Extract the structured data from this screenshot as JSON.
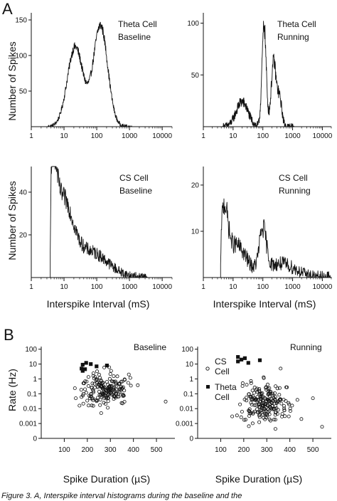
{
  "panel_labels": {
    "A": "A",
    "B": "B"
  },
  "text": {
    "y_title_hist_top": "Number of Spikes",
    "y_title_hist_bottom": "Number of Spikes",
    "x_title_hist_left": "Interspike Interval (mS)",
    "x_title_hist_right": "Interspike Interval (mS)",
    "y_title_scatter": "Rate (Hz)",
    "x_title_scatter_left": "Spike Duration (µS)",
    "x_title_scatter_right": "Spike Duration (µS)",
    "legend_cs_1": "CS",
    "legend_cs_2": "Cell",
    "legend_theta_1": "Theta",
    "legend_theta_2": "Cell",
    "caption_fragment": "Figure 3. A, Interspike interval histograms during the baseline and the"
  },
  "chart_data": [
    {
      "type": "area",
      "id": "theta_baseline",
      "label_lines": [
        "Theta Cell",
        "Baseline"
      ],
      "x_scale": "log",
      "xlim": [
        1,
        20000
      ],
      "ylim": [
        0,
        160
      ],
      "x_ticks": [
        1,
        10,
        100,
        1000,
        10000
      ],
      "x_tick_labels": [
        "1",
        "10",
        "100",
        "1000",
        "10000"
      ],
      "y_ticks": [
        50,
        100,
        150
      ],
      "y_tick_labels": [
        "50",
        "100",
        "150"
      ],
      "peaks": [
        {
          "x": 3.5,
          "y": 0,
          "sd": 0.06
        },
        {
          "x": 22,
          "y": 112,
          "sd": 0.24
        },
        {
          "x": 130,
          "y": 142,
          "sd": 0.22
        }
      ],
      "x_start": 3.2,
      "x_end": 1200,
      "noise": 7
    },
    {
      "type": "area",
      "id": "theta_running",
      "label_lines": [
        "Theta Cell",
        "Running"
      ],
      "x_scale": "log",
      "xlim": [
        1,
        20000
      ],
      "ylim": [
        0,
        110
      ],
      "x_ticks": [
        1,
        10,
        100,
        1000,
        10000
      ],
      "x_tick_labels": [
        "1",
        "10",
        "100",
        "1000",
        "10000"
      ],
      "y_ticks": [
        50,
        100
      ],
      "y_tick_labels": [
        "50",
        "100"
      ],
      "peaks": [
        {
          "x": 20,
          "y": 24,
          "sd": 0.2
        },
        {
          "x": 110,
          "y": 98,
          "sd": 0.07
        },
        {
          "x": 230,
          "y": 62,
          "sd": 0.08
        },
        {
          "x": 360,
          "y": 28,
          "sd": 0.08
        }
      ],
      "x_start": 4.5,
      "x_end": 1100,
      "noise": 9
    },
    {
      "type": "area",
      "id": "cs_baseline",
      "label_lines": [
        "CS Cell",
        "Baseline"
      ],
      "x_scale": "log",
      "xlim": [
        1,
        20000
      ],
      "ylim": [
        0,
        52
      ],
      "x_ticks": [
        1,
        10,
        100,
        1000,
        10000
      ],
      "x_tick_labels": [
        "1",
        "10",
        "100",
        "1000",
        "10000"
      ],
      "y_ticks": [
        20,
        40
      ],
      "y_tick_labels": [
        "20",
        "40"
      ],
      "peaks": [
        {
          "x": 4.5,
          "y": 36,
          "sd": 0.12
        },
        {
          "x": 9,
          "y": 33,
          "sd": 0.3
        },
        {
          "x": 60,
          "y": 12,
          "sd": 0.55
        }
      ],
      "x_start": 3.8,
      "x_end": 3500,
      "noise": 5
    },
    {
      "type": "area",
      "id": "cs_running",
      "label_lines": [
        "CS Cell",
        "Running"
      ],
      "x_scale": "log",
      "xlim": [
        1,
        20000
      ],
      "ylim": [
        0,
        24
      ],
      "x_ticks": [
        1,
        10,
        100,
        1000,
        10000
      ],
      "x_tick_labels": [
        "1",
        "10",
        "100",
        "1000",
        "10000"
      ],
      "y_ticks": [
        10,
        20
      ],
      "y_tick_labels": [
        "10",
        "20"
      ],
      "peaks": [
        {
          "x": 5,
          "y": 12,
          "sd": 0.12
        },
        {
          "x": 12,
          "y": 7,
          "sd": 0.35
        },
        {
          "x": 100,
          "y": 9,
          "sd": 0.12
        },
        {
          "x": 400,
          "y": 3,
          "sd": 0.5
        }
      ],
      "x_start": 3.8,
      "x_end": 20000,
      "noise": 3
    },
    {
      "type": "scatter",
      "id": "baseline_scatter",
      "label": "Baseline",
      "y_scale": "log",
      "xlim": [
        0,
        580
      ],
      "ylim": [
        0.0001,
        150
      ],
      "x_ticks": [
        100,
        200,
        300,
        400,
        500
      ],
      "x_tick_labels": [
        "100",
        "200",
        "300",
        "400",
        "500"
      ],
      "y_ticks": [
        100,
        10,
        1,
        0.1,
        0.01,
        0.001,
        0.0001
      ],
      "y_tick_labels": [
        "100",
        "10",
        "1",
        "0.1",
        "0.01",
        "0.001",
        "0"
      ],
      "theta_points": [
        [
          175,
          5
        ],
        [
          180,
          9
        ],
        [
          195,
          12
        ],
        [
          215,
          10
        ],
        [
          240,
          7
        ],
        [
          285,
          8
        ],
        [
          180,
          3.5
        ],
        [
          190,
          4.5
        ]
      ],
      "cs_cloud": {
        "count": 190,
        "x_mean": 280,
        "x_sd": 55,
        "log_y_mean": -0.75,
        "log_y_sd": 0.55
      },
      "cs_extra_points": [
        [
          150,
          0.05
        ],
        [
          540,
          0.03
        ],
        [
          330,
          1.5
        ],
        [
          380,
          2
        ],
        [
          260,
          0.005
        ]
      ]
    },
    {
      "type": "scatter",
      "id": "running_scatter",
      "label": "Running",
      "y_scale": "log",
      "xlim": [
        0,
        580
      ],
      "ylim": [
        0.0001,
        150
      ],
      "x_ticks": [
        100,
        200,
        300,
        400,
        500
      ],
      "x_tick_labels": [
        "100",
        "200",
        "300",
        "400",
        "500"
      ],
      "y_ticks": [
        100,
        10,
        1,
        0.1,
        0.01,
        0.001,
        0.0001
      ],
      "y_tick_labels": [
        "100",
        "10",
        "1",
        "0.1",
        "0.01",
        "0.001",
        "0"
      ],
      "theta_points": [
        [
          175,
          30
        ],
        [
          190,
          20
        ],
        [
          205,
          25
        ],
        [
          175,
          15
        ],
        [
          220,
          12
        ],
        [
          270,
          18
        ]
      ],
      "cs_cloud": {
        "count": 210,
        "x_mean": 290,
        "x_sd": 50,
        "log_y_mean": -1.6,
        "log_y_sd": 0.65
      },
      "cs_extra_points": [
        [
          360,
          5
        ],
        [
          500,
          0.05
        ],
        [
          540,
          0.0006
        ],
        [
          450,
          0.002
        ],
        [
          150,
          0.003
        ]
      ]
    }
  ]
}
